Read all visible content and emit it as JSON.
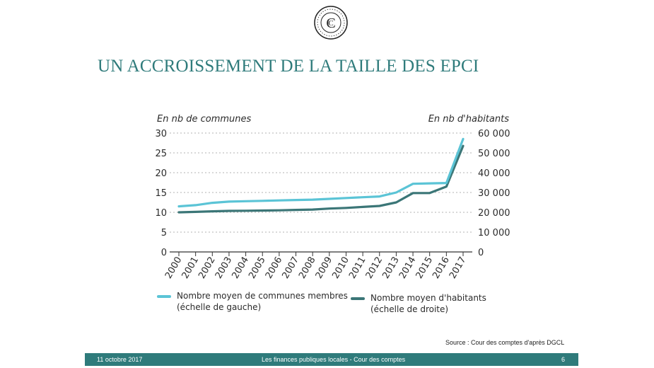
{
  "title": "UN ACCROISSEMENT DE LA TAILLE DES EPCI",
  "logo": {
    "icon": "cour-des-comptes-seal",
    "letters": "CC"
  },
  "chart_data": {
    "type": "line",
    "y_left_unit": "En nb de communes",
    "y_right_unit": "En nb d'habitants",
    "categories": [
      "2000",
      "2001",
      "2002",
      "2003",
      "2004",
      "2005",
      "2006",
      "2007",
      "2008",
      "2009",
      "2010",
      "2011",
      "2012",
      "2013",
      "2014",
      "2015",
      "2016",
      "2017"
    ],
    "y_left_ticks": [
      "0",
      "5",
      "10",
      "15",
      "20",
      "25",
      "30"
    ],
    "y_right_ticks": [
      "0",
      "10 000",
      "20 000",
      "30 000",
      "40 000",
      "50 000",
      "60 000"
    ],
    "ylim_left": [
      0,
      30
    ],
    "ylim_right": [
      0,
      60000
    ],
    "grid": "dashed horizontal",
    "series": [
      {
        "name": "Nombre moyen de communes membres",
        "name_line2": "(échelle de gauche)",
        "axis": "left",
        "color": "#5bc4d6",
        "values": [
          11.5,
          11.8,
          12.4,
          12.7,
          12.8,
          12.9,
          13.0,
          13.1,
          13.2,
          13.4,
          13.6,
          13.8,
          14.0,
          15.0,
          17.2,
          17.3,
          17.4,
          28.5
        ]
      },
      {
        "name": "Nombre moyen d'habitants",
        "name_line2": "(échelle de droite)",
        "axis": "right",
        "color": "#3b7677",
        "values": [
          20000,
          20200,
          20500,
          20700,
          20800,
          20900,
          21000,
          21200,
          21400,
          21900,
          22200,
          22700,
          23200,
          25000,
          29700,
          29700,
          33000,
          53500
        ]
      }
    ]
  },
  "source": "Source : Cour des comptes d'après DGCL",
  "footer": {
    "date": "11 octobre 2017",
    "center": "Les finances publiques locales - Cour des comptes",
    "page": "6"
  },
  "colors": {
    "brand": "#2f7b7b"
  }
}
